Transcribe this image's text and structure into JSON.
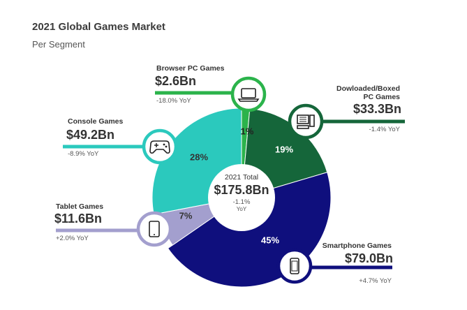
{
  "header": {
    "title": "2021 Global Games Market",
    "subtitle": "Per Segment"
  },
  "center": {
    "label": "2021 Total",
    "value": "$175.8Bn",
    "change": "-1.1%",
    "change_unit": "YoY"
  },
  "chart_data": {
    "type": "pie",
    "variant": "donut",
    "title": "2021 Global Games Market",
    "subtitle": "Per Segment",
    "unit": "$Bn",
    "total": 175.8,
    "total_change_yoy_pct": -1.1,
    "segments": [
      {
        "name": "Browser PC Games",
        "value": 2.6,
        "value_label": "$2.6Bn",
        "share_pct": 1,
        "share_label": "1%",
        "yoy_label": "-18.0% YoY",
        "color": "#2bb34b",
        "icon": "laptop-icon"
      },
      {
        "name": "Dowloaded/Boxed PC Games",
        "value": 33.3,
        "value_label": "$33.3Bn",
        "share_pct": 19,
        "share_label": "19%",
        "yoy_label": "-1.4% YoY",
        "color": "#15663a",
        "icon": "desktop-pc-icon"
      },
      {
        "name": "Smartphone Games",
        "value": 79.0,
        "value_label": "$79.0Bn",
        "share_pct": 45,
        "share_label": "45%",
        "yoy_label": "+4.7% YoY",
        "color": "#0f0f7d",
        "icon": "smartphone-icon"
      },
      {
        "name": "Tablet Games",
        "value": 11.6,
        "value_label": "$11.6Bn",
        "share_pct": 7,
        "share_label": "7%",
        "yoy_label": "+2.0% YoY",
        "color": "#a39fce",
        "icon": "tablet-icon"
      },
      {
        "name": "Console Games",
        "value": 49.2,
        "value_label": "$49.2Bn",
        "share_pct": 28,
        "share_label": "28%",
        "yoy_label": "-8.9% YoY",
        "color": "#2bc9bd",
        "icon": "gamepad-icon"
      }
    ]
  },
  "labels": {
    "browser_name": "Browser PC Games",
    "downloaded_name_line1": "Dowloaded/Boxed",
    "downloaded_name_line2": "PC Games",
    "smartphone_name": "Smartphone Games",
    "tablet_name": "Tablet Games",
    "console_name": "Console Games"
  }
}
